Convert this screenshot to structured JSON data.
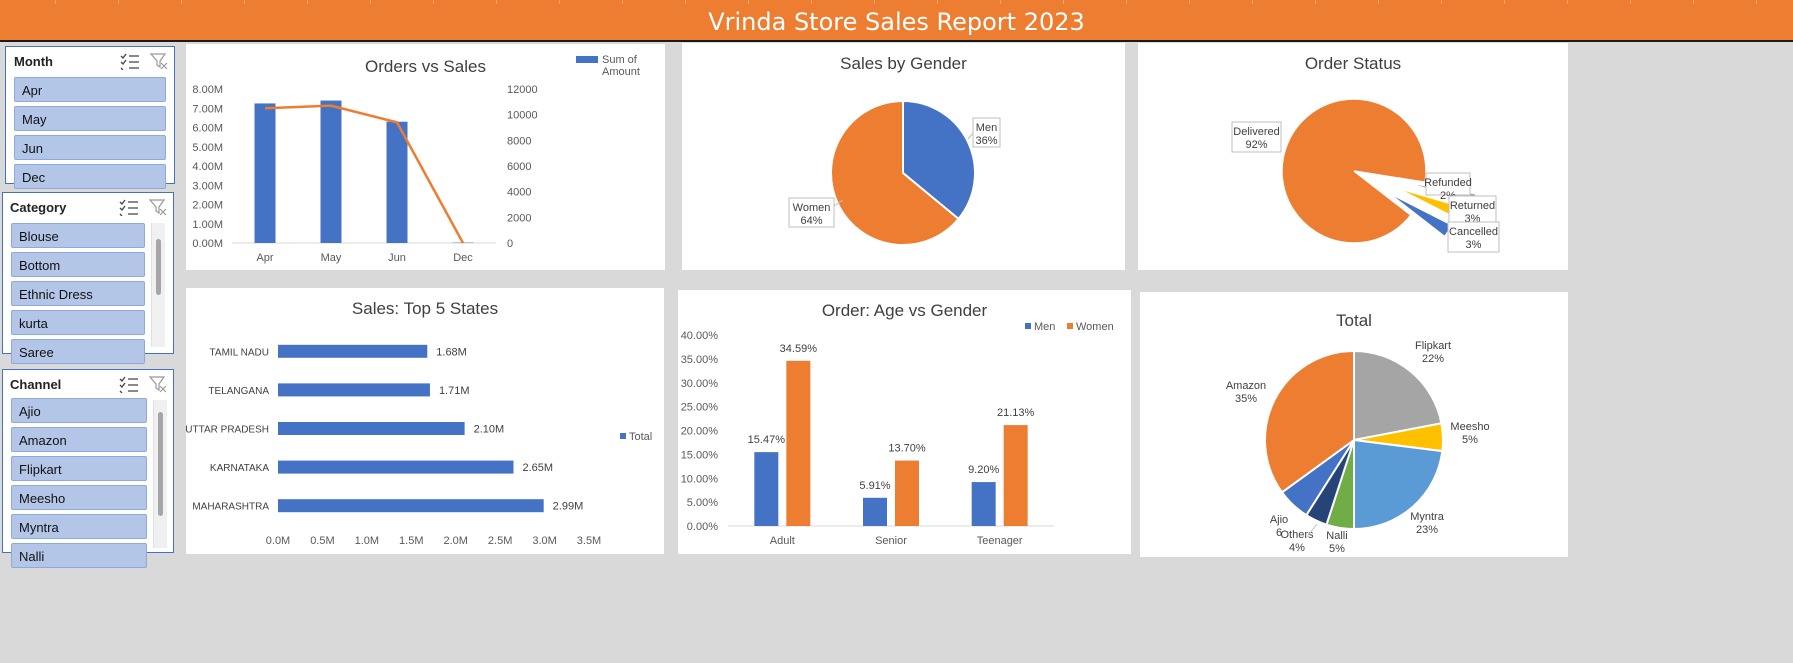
{
  "header": {
    "title": "Vrinda Store Sales Report 2023"
  },
  "colors": {
    "accent": "#ed7d31",
    "blue": "#4472c4",
    "gray": "#a5a5a5",
    "yellow": "#ffc000",
    "light_blue": "#5b9bd5",
    "green": "#70ad47",
    "dark_blue": "#264478",
    "slicer_item": "#b4c6e7"
  },
  "icons": {
    "multiselect": "multiselect-icon",
    "clear_filter": "clear-filter-icon"
  },
  "slicers": {
    "month": {
      "title": "Month",
      "items": [
        "Apr",
        "May",
        "Jun",
        "Dec"
      ]
    },
    "category": {
      "title": "Category",
      "items": [
        "Blouse",
        "Bottom",
        "Ethnic Dress",
        "kurta",
        "Saree"
      ]
    },
    "channel": {
      "title": "Channel",
      "items": [
        "Ajio",
        "Amazon",
        "Flipkart",
        "Meesho",
        "Myntra",
        "Nalli"
      ]
    }
  },
  "chart_data": [
    {
      "id": "orders-vs-sales",
      "type": "bar",
      "title": "Orders vs Sales",
      "categories": [
        "Apr",
        "May",
        "Jun",
        "Dec"
      ],
      "series": [
        {
          "name": "Sum of Amount",
          "values": [
            7.25,
            7.4,
            6.3,
            0.02
          ],
          "axis": "left"
        },
        {
          "values": [
            10500,
            10700,
            9400,
            0
          ],
          "axis": "right",
          "kind": "line"
        }
      ],
      "y_ticks": [
        "0.00M",
        "1.00M",
        "2.00M",
        "3.00M",
        "4.00M",
        "5.00M",
        "6.00M",
        "7.00M",
        "8.00M"
      ],
      "y2_ticks": [
        "0",
        "2000",
        "4000",
        "6000",
        "8000",
        "10000",
        "12000"
      ],
      "ylim": [
        0,
        8
      ],
      "y2lim": [
        0,
        12000
      ],
      "legend": {
        "label_line1": "Sum of",
        "label_line2": "Amount",
        "position": "top-right"
      }
    },
    {
      "id": "sales-by-gender",
      "type": "pie",
      "title": "Sales by Gender",
      "slices": [
        {
          "name": "Men",
          "value": 36,
          "label": "36%"
        },
        {
          "name": "Women",
          "value": 64,
          "label": "64%"
        }
      ]
    },
    {
      "id": "order-status",
      "type": "pie",
      "title": "Order Status",
      "slices": [
        {
          "name": "Delivered",
          "value": 92,
          "label": "92%"
        },
        {
          "name": "Refunded",
          "value": 2,
          "label": "2%"
        },
        {
          "name": "Returned",
          "value": 3,
          "label": "3%"
        },
        {
          "name": "Cancelled",
          "value": 3,
          "label": "3%"
        }
      ]
    },
    {
      "id": "top-5-states",
      "type": "bar",
      "title": "Sales: Top 5 States",
      "categories": [
        "TAMIL NADU",
        "TELANGANA",
        "UTTAR PRADESH",
        "KARNATAKA",
        "MAHARASHTRA"
      ],
      "series": [
        {
          "name": "Total",
          "values": [
            1.68,
            1.71,
            2.1,
            2.65,
            2.99
          ],
          "labels": [
            "1.68M",
            "1.71M",
            "2.10M",
            "2.65M",
            "2.99M"
          ]
        }
      ],
      "x_ticks": [
        "0.0M",
        "0.5M",
        "1.0M",
        "1.5M",
        "2.0M",
        "2.5M",
        "3.0M",
        "3.5M"
      ],
      "xlim": [
        0,
        3.5
      ],
      "legend": {
        "label": "Total",
        "position": "right"
      }
    },
    {
      "id": "age-vs-gender",
      "type": "bar",
      "title": "Order: Age vs Gender",
      "categories": [
        "Adult",
        "Senior",
        "Teenager"
      ],
      "series": [
        {
          "name": "Men",
          "values": [
            15.47,
            5.91,
            9.2
          ],
          "labels": [
            "15.47%",
            "5.91%",
            "9.20%"
          ]
        },
        {
          "name": "Women",
          "values": [
            34.59,
            13.7,
            21.13
          ],
          "labels": [
            "34.59%",
            "13.70%",
            "21.13%"
          ]
        }
      ],
      "y_ticks": [
        "0.00%",
        "5.00%",
        "10.00%",
        "15.00%",
        "20.00%",
        "25.00%",
        "30.00%",
        "35.00%",
        "40.00%"
      ],
      "ylim": [
        0,
        40
      ],
      "legend": {
        "position": "top-right"
      }
    },
    {
      "id": "total-by-channel",
      "type": "pie",
      "title": "Total",
      "slices": [
        {
          "name": "Flipkart",
          "value": 22,
          "label": "22%"
        },
        {
          "name": "Meesho",
          "value": 5,
          "label": "5%"
        },
        {
          "name": "Myntra",
          "value": 23,
          "label": "23%"
        },
        {
          "name": "Nalli",
          "value": 5,
          "label": "5%"
        },
        {
          "name": "Others",
          "value": 4,
          "label": "4%"
        },
        {
          "name": "Ajio",
          "value": 6,
          "label": "6"
        },
        {
          "name": "Amazon",
          "value": 35,
          "label": "35%"
        }
      ]
    }
  ]
}
